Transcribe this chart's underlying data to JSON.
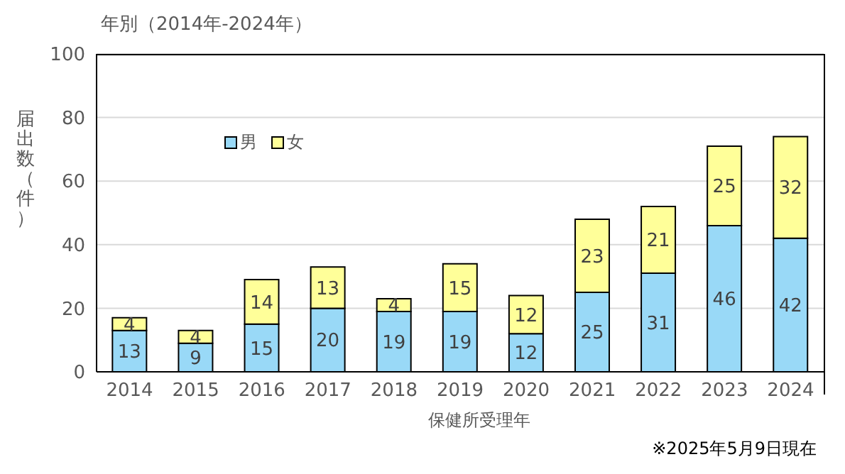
{
  "chart_data": {
    "type": "bar",
    "title": "年別（2014年-2024年）",
    "xlabel": "保健所受理年",
    "ylabel": "届出数（件）",
    "annotations": [
      "※2025年5月9日現在"
    ],
    "categories": [
      "2014",
      "2015",
      "2016",
      "2017",
      "2018",
      "2019",
      "2020",
      "2021",
      "2022",
      "2023",
      "2024"
    ],
    "series": [
      {
        "name": "男",
        "color": "#99d9f7",
        "values": [
          13,
          9,
          15,
          20,
          19,
          19,
          12,
          25,
          31,
          46,
          42
        ]
      },
      {
        "name": "女",
        "color": "#ffff99",
        "values": [
          4,
          4,
          14,
          13,
          4,
          15,
          12,
          23,
          21,
          25,
          32
        ]
      }
    ],
    "stacked": true,
    "data_labels": true,
    "ylim": [
      0,
      100
    ],
    "yticks": [
      0,
      20,
      40,
      60,
      80,
      100
    ],
    "grid": "y",
    "legend": "top left"
  }
}
